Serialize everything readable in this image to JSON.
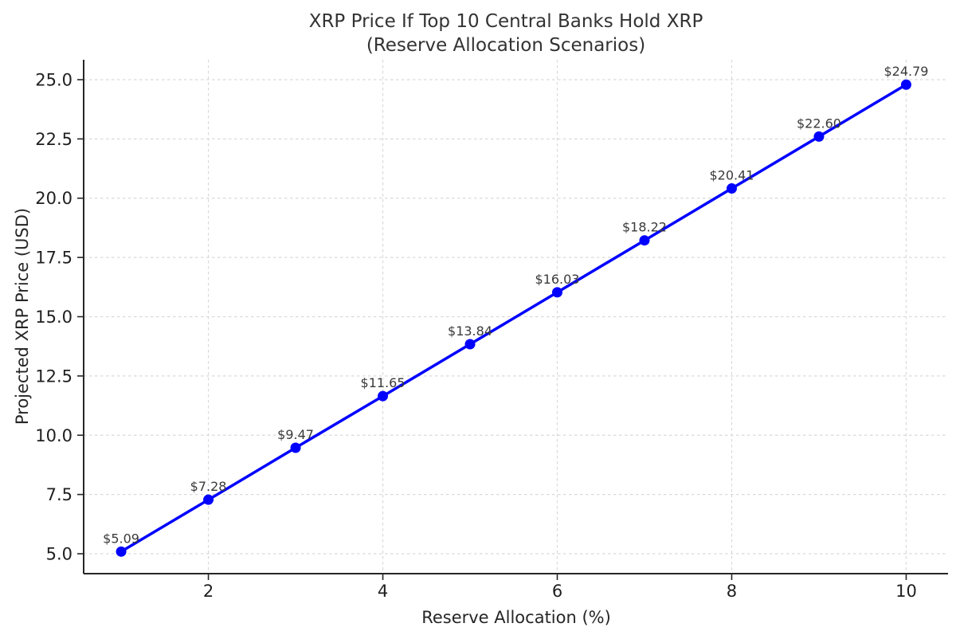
{
  "chart_data": {
    "type": "line",
    "title_line1": "XRP Price If Top 10 Central Banks Hold XRP",
    "title_line2": "(Reserve Allocation Scenarios)",
    "xlabel": "Reserve Allocation (%)",
    "ylabel": "Projected XRP Price (USD)",
    "points": [
      {
        "x": 1,
        "y": 5.09,
        "label": "$5.09"
      },
      {
        "x": 2,
        "y": 7.28,
        "label": "$7.28"
      },
      {
        "x": 3,
        "y": 9.47,
        "label": "$9.47"
      },
      {
        "x": 4,
        "y": 11.65,
        "label": "$11.65"
      },
      {
        "x": 5,
        "y": 13.84,
        "label": "$13.84"
      },
      {
        "x": 6,
        "y": 16.03,
        "label": "$16.03"
      },
      {
        "x": 7,
        "y": 18.22,
        "label": "$18.22"
      },
      {
        "x": 8,
        "y": 20.41,
        "label": "$20.41"
      },
      {
        "x": 9,
        "y": 22.6,
        "label": "$22.60"
      },
      {
        "x": 10,
        "y": 24.79,
        "label": "$24.79"
      }
    ],
    "x_ticks": [
      {
        "v": 2,
        "label": "2"
      },
      {
        "v": 4,
        "label": "4"
      },
      {
        "v": 6,
        "label": "6"
      },
      {
        "v": 8,
        "label": "8"
      },
      {
        "v": 10,
        "label": "10"
      }
    ],
    "y_ticks": [
      {
        "v": 5.0,
        "label": "5.0"
      },
      {
        "v": 7.5,
        "label": "7.5"
      },
      {
        "v": 10.0,
        "label": "10.0"
      },
      {
        "v": 12.5,
        "label": "12.5"
      },
      {
        "v": 15.0,
        "label": "15.0"
      },
      {
        "v": 17.5,
        "label": "17.5"
      },
      {
        "v": 20.0,
        "label": "20.0"
      },
      {
        "v": 22.5,
        "label": "22.5"
      },
      {
        "v": 25.0,
        "label": "25.0"
      }
    ],
    "xlim": [
      0.57,
      10.48
    ],
    "ylim": [
      4.16,
      25.84
    ],
    "grid": true,
    "grid_style": "dashed",
    "legend": "none",
    "colors": {
      "line": "#0000ff",
      "marker": "#0000ff",
      "grid": "#d9d9d9",
      "spine": "#262626",
      "tick_label": "#1f1f1f",
      "point_label": "#3a3a3a",
      "background": "#ffffff"
    }
  }
}
